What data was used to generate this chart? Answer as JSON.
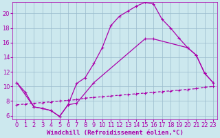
{
  "xlabel": "Windchill (Refroidissement éolien,°C)",
  "bg_color": "#cce8ee",
  "grid_color": "#99bbcc",
  "line_color": "#aa00aa",
  "xlim": [
    -0.5,
    23.5
  ],
  "ylim": [
    5.5,
    21.5
  ],
  "xticks": [
    0,
    1,
    2,
    3,
    4,
    5,
    6,
    7,
    8,
    9,
    10,
    11,
    12,
    13,
    14,
    15,
    16,
    17,
    18,
    19,
    20,
    21,
    22,
    23
  ],
  "yticks": [
    6,
    8,
    10,
    12,
    14,
    16,
    18,
    20
  ],
  "line1_x": [
    0,
    1,
    2,
    3,
    4,
    5,
    6,
    7,
    8,
    9,
    10,
    11,
    12,
    13,
    14,
    15,
    16,
    17,
    18,
    19,
    20,
    21,
    22,
    23
  ],
  "line1_y": [
    10.5,
    9.2,
    7.2,
    7.0,
    6.7,
    5.9,
    7.5,
    10.4,
    11.2,
    13.1,
    15.3,
    18.3,
    19.6,
    20.3,
    21.0,
    21.5,
    21.3,
    19.2,
    18.0,
    16.6,
    15.3,
    14.3,
    11.8,
    10.5
  ],
  "line2_x": [
    0,
    2,
    3,
    4,
    5,
    6,
    7,
    9,
    15,
    16,
    20,
    21,
    22,
    23
  ],
  "line2_y": [
    10.5,
    7.2,
    7.0,
    6.7,
    5.9,
    7.5,
    7.7,
    10.5,
    16.5,
    16.5,
    15.3,
    14.3,
    11.8,
    10.5
  ],
  "line3_x": [
    0,
    1,
    2,
    3,
    4,
    5,
    6,
    7,
    8,
    9,
    10,
    11,
    12,
    13,
    14,
    15,
    16,
    17,
    18,
    19,
    20,
    21,
    22,
    23
  ],
  "line3_y": [
    7.5,
    7.6,
    7.7,
    7.8,
    7.9,
    8.0,
    8.1,
    8.2,
    8.4,
    8.5,
    8.6,
    8.7,
    8.8,
    8.9,
    9.0,
    9.1,
    9.2,
    9.3,
    9.4,
    9.5,
    9.6,
    9.7,
    9.9,
    10.0
  ],
  "xlabel_fontsize": 6.5,
  "tick_fontsize": 6
}
